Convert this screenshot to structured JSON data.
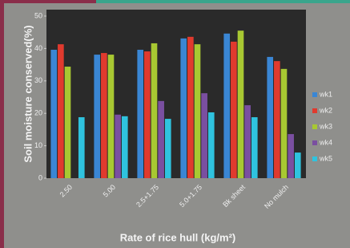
{
  "chart_data": {
    "type": "bar",
    "y_label": "Soil moisture conserved(%)",
    "x_label": "Rate of rice hull (kg/m²)",
    "categories": [
      "2.50",
      "5.00",
      "2.5+1.75",
      "5.0+1.75",
      "Bk sheet",
      "No mulch"
    ],
    "series": [
      {
        "name": "wk1",
        "color": "#3a86d4",
        "values": [
          39.6,
          38.1,
          39.6,
          43.1,
          44.6,
          37.4
        ]
      },
      {
        "name": "wk2",
        "color": "#e03a2e",
        "values": [
          41.3,
          38.6,
          39.1,
          43.6,
          42.1,
          36.1
        ]
      },
      {
        "name": "wk3",
        "color": "#a8c832",
        "values": [
          34.4,
          38.1,
          41.6,
          41.3,
          45.5,
          33.7
        ]
      },
      {
        "name": "wk4",
        "color": "#7a4fa0",
        "values": [
          null,
          19.6,
          23.8,
          26.2,
          22.5,
          13.6
        ]
      },
      {
        "name": "wk5",
        "color": "#2fc3df",
        "values": [
          18.8,
          19.1,
          18.3,
          20.3,
          18.8,
          7.9
        ]
      }
    ],
    "ylim": [
      0,
      50
    ],
    "yticks": [
      0,
      10,
      20,
      30,
      40,
      50
    ],
    "grid": false,
    "legend": "right"
  }
}
